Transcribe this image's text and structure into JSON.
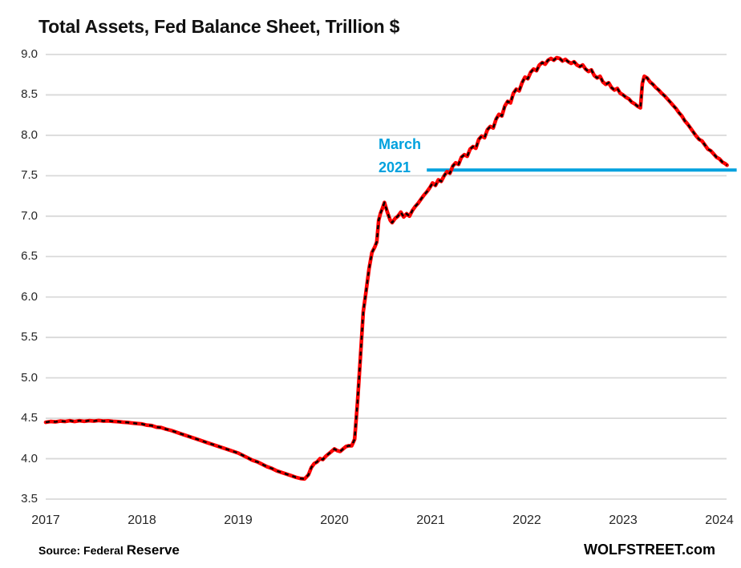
{
  "title": "Total Assets, Fed Balance Sheet, Trillion $",
  "footer": {
    "source_prefix": "Source: Federal ",
    "source_suffix": "Reserve",
    "branding": "WOLFSTREET.com"
  },
  "annotation": {
    "line1": "March",
    "line2": "2021",
    "value": 7.57,
    "color": "#00A1DE"
  },
  "colors": {
    "series_red": "#FF0000",
    "series_dash": "#000000",
    "gridline": "#D9D9D9",
    "annotation_blue": "#00A1DE",
    "text": "#262626",
    "title_text": "#111111"
  },
  "chart_data": {
    "type": "line",
    "title": "Total Assets, Fed Balance Sheet, Trillion $",
    "xlabel": "",
    "ylabel": "Trillion $",
    "grid": true,
    "legend": "none",
    "xlim": [
      2017,
      2024.1
    ],
    "ylim": [
      3.5,
      9.0
    ],
    "x_tick_labels": [
      "2017",
      "2018",
      "2019",
      "2020",
      "2021",
      "2022",
      "2023",
      "2024"
    ],
    "x_tick_values": [
      2017,
      2018,
      2019,
      2020,
      2021,
      2022,
      2023,
      2024
    ],
    "y_tick_labels": [
      "9.0",
      "8.5",
      "8.0",
      "7.5",
      "7.0",
      "6.5",
      "6.0",
      "5.5",
      "5.0",
      "4.5",
      "4.0",
      "3.5"
    ],
    "y_tick_values": [
      9.0,
      8.5,
      8.0,
      7.5,
      7.0,
      6.5,
      6.0,
      5.5,
      5.0,
      4.5,
      4.0,
      3.5
    ],
    "annotation_line": {
      "label": "March 2021",
      "y": 7.57,
      "x_start": 2020.96,
      "x_end": 2024.18
    },
    "series": [
      {
        "name": "Fed total assets, trillion $",
        "style": "solid red with black dashes",
        "points": [
          [
            2017.0,
            4.45
          ],
          [
            2017.05,
            4.46
          ],
          [
            2017.1,
            4.455
          ],
          [
            2017.15,
            4.465
          ],
          [
            2017.2,
            4.46
          ],
          [
            2017.25,
            4.47
          ],
          [
            2017.3,
            4.46
          ],
          [
            2017.35,
            4.47
          ],
          [
            2017.4,
            4.462
          ],
          [
            2017.45,
            4.47
          ],
          [
            2017.5,
            4.465
          ],
          [
            2017.55,
            4.472
          ],
          [
            2017.6,
            4.465
          ],
          [
            2017.65,
            4.468
          ],
          [
            2017.7,
            4.462
          ],
          [
            2017.75,
            4.458
          ],
          [
            2017.8,
            4.452
          ],
          [
            2017.85,
            4.448
          ],
          [
            2017.9,
            4.44
          ],
          [
            2017.95,
            4.435
          ],
          [
            2018.0,
            4.43
          ],
          [
            2018.05,
            4.415
          ],
          [
            2018.1,
            4.41
          ],
          [
            2018.15,
            4.39
          ],
          [
            2018.2,
            4.385
          ],
          [
            2018.25,
            4.365
          ],
          [
            2018.3,
            4.35
          ],
          [
            2018.35,
            4.33
          ],
          [
            2018.4,
            4.31
          ],
          [
            2018.45,
            4.29
          ],
          [
            2018.5,
            4.27
          ],
          [
            2018.55,
            4.25
          ],
          [
            2018.6,
            4.23
          ],
          [
            2018.65,
            4.21
          ],
          [
            2018.7,
            4.19
          ],
          [
            2018.75,
            4.17
          ],
          [
            2018.8,
            4.15
          ],
          [
            2018.85,
            4.13
          ],
          [
            2018.9,
            4.11
          ],
          [
            2018.95,
            4.09
          ],
          [
            2019.0,
            4.07
          ],
          [
            2019.05,
            4.04
          ],
          [
            2019.1,
            4.01
          ],
          [
            2019.15,
            3.98
          ],
          [
            2019.2,
            3.96
          ],
          [
            2019.25,
            3.93
          ],
          [
            2019.3,
            3.9
          ],
          [
            2019.35,
            3.88
          ],
          [
            2019.4,
            3.85
          ],
          [
            2019.45,
            3.83
          ],
          [
            2019.5,
            3.81
          ],
          [
            2019.55,
            3.79
          ],
          [
            2019.6,
            3.77
          ],
          [
            2019.65,
            3.755
          ],
          [
            2019.69,
            3.75
          ],
          [
            2019.73,
            3.8
          ],
          [
            2019.76,
            3.89
          ],
          [
            2019.79,
            3.94
          ],
          [
            2019.82,
            3.96
          ],
          [
            2019.85,
            4.0
          ],
          [
            2019.88,
            3.99
          ],
          [
            2019.91,
            4.03
          ],
          [
            2019.94,
            4.06
          ],
          [
            2019.97,
            4.09
          ],
          [
            2020.0,
            4.12
          ],
          [
            2020.03,
            4.1
          ],
          [
            2020.06,
            4.09
          ],
          [
            2020.09,
            4.12
          ],
          [
            2020.12,
            4.15
          ],
          [
            2020.15,
            4.16
          ],
          [
            2020.18,
            4.16
          ],
          [
            2020.21,
            4.24
          ],
          [
            2020.24,
            4.7
          ],
          [
            2020.27,
            5.25
          ],
          [
            2020.3,
            5.82
          ],
          [
            2020.33,
            6.08
          ],
          [
            2020.36,
            6.35
          ],
          [
            2020.39,
            6.55
          ],
          [
            2020.42,
            6.62
          ],
          [
            2020.44,
            6.68
          ],
          [
            2020.46,
            6.95
          ],
          [
            2020.48,
            7.04
          ],
          [
            2020.5,
            7.1
          ],
          [
            2020.52,
            7.17
          ],
          [
            2020.55,
            7.05
          ],
          [
            2020.58,
            6.95
          ],
          [
            2020.6,
            6.92
          ],
          [
            2020.63,
            6.97
          ],
          [
            2020.66,
            7.0
          ],
          [
            2020.69,
            7.05
          ],
          [
            2020.72,
            6.99
          ],
          [
            2020.75,
            7.03
          ],
          [
            2020.78,
            7.0
          ],
          [
            2020.81,
            7.07
          ],
          [
            2020.84,
            7.12
          ],
          [
            2020.87,
            7.16
          ],
          [
            2020.9,
            7.21
          ],
          [
            2020.93,
            7.26
          ],
          [
            2020.96,
            7.3
          ],
          [
            2020.99,
            7.35
          ],
          [
            2021.02,
            7.41
          ],
          [
            2021.05,
            7.38
          ],
          [
            2021.08,
            7.45
          ],
          [
            2021.11,
            7.43
          ],
          [
            2021.14,
            7.5
          ],
          [
            2021.17,
            7.55
          ],
          [
            2021.2,
            7.53
          ],
          [
            2021.23,
            7.62
          ],
          [
            2021.26,
            7.66
          ],
          [
            2021.29,
            7.64
          ],
          [
            2021.32,
            7.73
          ],
          [
            2021.35,
            7.76
          ],
          [
            2021.38,
            7.74
          ],
          [
            2021.41,
            7.83
          ],
          [
            2021.44,
            7.86
          ],
          [
            2021.47,
            7.84
          ],
          [
            2021.5,
            7.95
          ],
          [
            2021.53,
            7.99
          ],
          [
            2021.56,
            7.97
          ],
          [
            2021.59,
            8.07
          ],
          [
            2021.62,
            8.11
          ],
          [
            2021.65,
            8.09
          ],
          [
            2021.68,
            8.2
          ],
          [
            2021.71,
            8.26
          ],
          [
            2021.74,
            8.24
          ],
          [
            2021.77,
            8.36
          ],
          [
            2021.8,
            8.42
          ],
          [
            2021.83,
            8.4
          ],
          [
            2021.86,
            8.52
          ],
          [
            2021.89,
            8.57
          ],
          [
            2021.92,
            8.55
          ],
          [
            2021.95,
            8.65
          ],
          [
            2021.98,
            8.72
          ],
          [
            2022.01,
            8.7
          ],
          [
            2022.04,
            8.78
          ],
          [
            2022.07,
            8.82
          ],
          [
            2022.1,
            8.8
          ],
          [
            2022.13,
            8.87
          ],
          [
            2022.16,
            8.9
          ],
          [
            2022.19,
            8.88
          ],
          [
            2022.22,
            8.93
          ],
          [
            2022.25,
            8.95
          ],
          [
            2022.28,
            8.93
          ],
          [
            2022.31,
            8.96
          ],
          [
            2022.34,
            8.95
          ],
          [
            2022.37,
            8.92
          ],
          [
            2022.4,
            8.94
          ],
          [
            2022.43,
            8.91
          ],
          [
            2022.46,
            8.89
          ],
          [
            2022.49,
            8.91
          ],
          [
            2022.52,
            8.87
          ],
          [
            2022.55,
            8.85
          ],
          [
            2022.58,
            8.87
          ],
          [
            2022.61,
            8.82
          ],
          [
            2022.64,
            8.79
          ],
          [
            2022.67,
            8.81
          ],
          [
            2022.7,
            8.74
          ],
          [
            2022.73,
            8.71
          ],
          [
            2022.76,
            8.73
          ],
          [
            2022.79,
            8.66
          ],
          [
            2022.82,
            8.63
          ],
          [
            2022.85,
            8.65
          ],
          [
            2022.88,
            8.59
          ],
          [
            2022.91,
            8.56
          ],
          [
            2022.94,
            8.58
          ],
          [
            2022.97,
            8.52
          ],
          [
            2023.0,
            8.5
          ],
          [
            2023.03,
            8.47
          ],
          [
            2023.06,
            8.45
          ],
          [
            2023.09,
            8.41
          ],
          [
            2023.12,
            8.39
          ],
          [
            2023.15,
            8.36
          ],
          [
            2023.18,
            8.34
          ],
          [
            2023.2,
            8.64
          ],
          [
            2023.22,
            8.73
          ],
          [
            2023.25,
            8.71
          ],
          [
            2023.28,
            8.66
          ],
          [
            2023.31,
            8.63
          ],
          [
            2023.34,
            8.59
          ],
          [
            2023.37,
            8.56
          ],
          [
            2023.4,
            8.52
          ],
          [
            2023.43,
            8.49
          ],
          [
            2023.46,
            8.45
          ],
          [
            2023.49,
            8.41
          ],
          [
            2023.52,
            8.37
          ],
          [
            2023.55,
            8.33
          ],
          [
            2023.58,
            8.28
          ],
          [
            2023.61,
            8.24
          ],
          [
            2023.64,
            8.18
          ],
          [
            2023.67,
            8.14
          ],
          [
            2023.7,
            8.09
          ],
          [
            2023.73,
            8.04
          ],
          [
            2023.76,
            7.99
          ],
          [
            2023.79,
            7.95
          ],
          [
            2023.82,
            7.93
          ],
          [
            2023.85,
            7.88
          ],
          [
            2023.88,
            7.83
          ],
          [
            2023.91,
            7.81
          ],
          [
            2023.94,
            7.77
          ],
          [
            2023.97,
            7.73
          ],
          [
            2024.0,
            7.71
          ],
          [
            2024.03,
            7.67
          ],
          [
            2024.06,
            7.65
          ],
          [
            2024.08,
            7.63
          ]
        ]
      }
    ]
  }
}
